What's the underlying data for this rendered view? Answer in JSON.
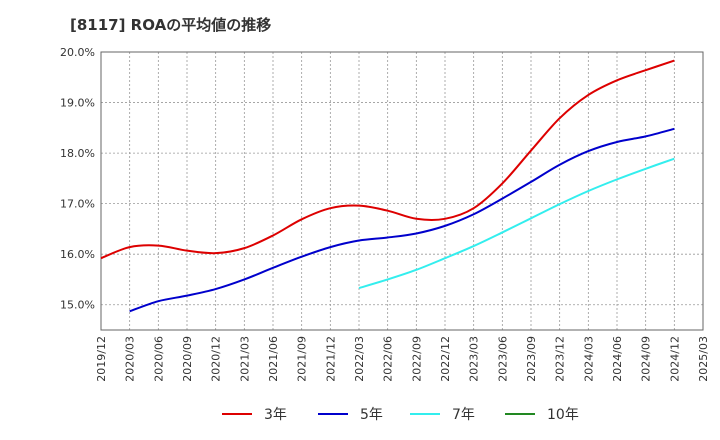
{
  "chart_data": {
    "type": "line",
    "title": "[8117]  ROAの平均値の推移",
    "xlabel": "",
    "ylabel": "",
    "x_ticks": [
      "2019/12",
      "2020/03",
      "2020/06",
      "2020/09",
      "2020/12",
      "2021/03",
      "2021/06",
      "2021/09",
      "2021/12",
      "2022/03",
      "2022/06",
      "2022/09",
      "2022/12",
      "2023/03",
      "2023/06",
      "2023/09",
      "2023/12",
      "2024/03",
      "2024/06",
      "2024/09",
      "2024/12",
      "2025/03"
    ],
    "y_ticks": [
      "15.0%",
      "16.0%",
      "17.0%",
      "18.0%",
      "19.0%",
      "20.0%"
    ],
    "y_tick_values": [
      15,
      16,
      17,
      18,
      19,
      20
    ],
    "ylim": [
      14.5,
      20.0
    ],
    "grid": true,
    "legend_position": "bottom",
    "series": [
      {
        "name": "3年",
        "color": "#dd0000",
        "x": [
          "2019/12",
          "2020/03",
          "2020/06",
          "2020/09",
          "2020/12",
          "2021/03",
          "2021/06",
          "2021/09",
          "2021/12",
          "2022/03",
          "2022/06",
          "2022/09",
          "2022/12",
          "2023/03",
          "2023/06",
          "2023/09",
          "2023/12",
          "2024/03",
          "2024/06",
          "2024/09",
          "2024/12"
        ],
        "values": [
          15.92,
          16.14,
          16.17,
          16.07,
          16.02,
          16.12,
          16.37,
          16.69,
          16.91,
          16.96,
          16.86,
          16.7,
          16.7,
          16.91,
          17.4,
          18.05,
          18.69,
          19.15,
          19.44,
          19.64,
          19.83
        ]
      },
      {
        "name": "5年",
        "color": "#0000cc",
        "x": [
          "2020/03",
          "2020/06",
          "2020/09",
          "2020/12",
          "2021/03",
          "2021/06",
          "2021/09",
          "2021/12",
          "2022/03",
          "2022/06",
          "2022/09",
          "2022/12",
          "2023/03",
          "2023/06",
          "2023/09",
          "2023/12",
          "2024/03",
          "2024/06",
          "2024/09",
          "2024/12"
        ],
        "values": [
          14.87,
          15.07,
          15.18,
          15.31,
          15.5,
          15.73,
          15.95,
          16.14,
          16.27,
          16.33,
          16.41,
          16.56,
          16.79,
          17.1,
          17.43,
          17.77,
          18.04,
          18.22,
          18.33,
          18.48
        ]
      },
      {
        "name": "7年",
        "color": "#33eeee",
        "x": [
          "2022/03",
          "2022/06",
          "2022/09",
          "2022/12",
          "2023/03",
          "2023/06",
          "2023/09",
          "2023/12",
          "2024/03",
          "2024/06",
          "2024/09",
          "2024/12"
        ],
        "values": [
          15.33,
          15.5,
          15.69,
          15.92,
          16.16,
          16.43,
          16.71,
          16.99,
          17.25,
          17.48,
          17.69,
          17.89
        ]
      },
      {
        "name": "10年",
        "color": "#228822",
        "x": [],
        "values": []
      }
    ]
  }
}
